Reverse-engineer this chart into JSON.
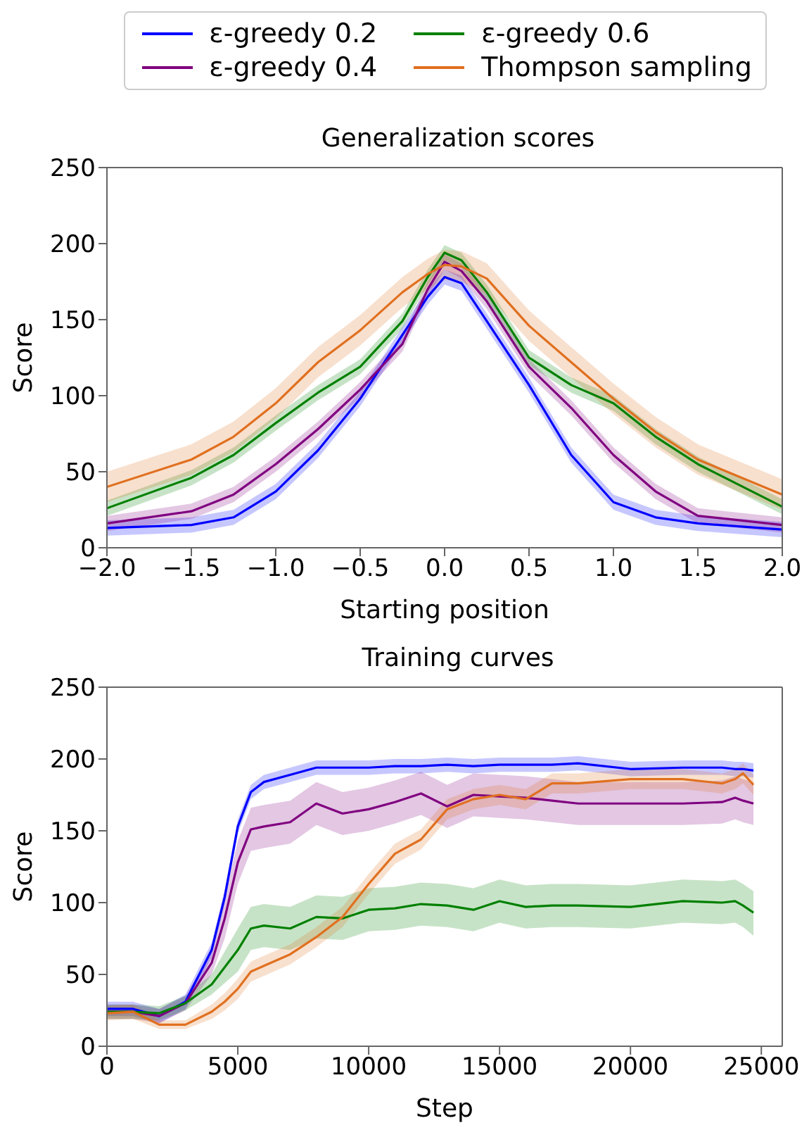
{
  "chart_data": [
    {
      "type": "line",
      "title": "Generalization scores",
      "xlabel": "Starting position",
      "ylabel": "Score",
      "legend": "top",
      "x": [
        -2,
        -1.5,
        -1.25,
        -1,
        -0.75,
        -0.5,
        -0.25,
        -0.1,
        0,
        0.1,
        0.25,
        0.5,
        0.75,
        1,
        1.25,
        1.5,
        2
      ],
      "xlim": [
        -2,
        2
      ],
      "xticks": [
        {
          "value": -2,
          "label": "−2.0"
        },
        {
          "value": -1.5,
          "label": "−1.5"
        },
        {
          "value": -1,
          "label": "−1.0"
        },
        {
          "value": -0.5,
          "label": "−0.5"
        },
        {
          "value": 0,
          "label": "0.0"
        },
        {
          "value": 0.5,
          "label": "0.5"
        },
        {
          "value": 1,
          "label": "1.0"
        },
        {
          "value": 1.5,
          "label": "1.5"
        },
        {
          "value": 2,
          "label": "2.0"
        }
      ],
      "ylim": [
        0,
        250
      ],
      "yticks": [
        0,
        50,
        100,
        150,
        200,
        250
      ],
      "series": [
        {
          "name": "ε-greedy 0.2",
          "color": "#0000ff",
          "values": [
            13,
            15,
            20,
            37,
            64,
            98,
            140,
            165,
            178,
            174,
            149,
            107,
            61,
            30,
            20,
            16,
            12
          ],
          "lower": [
            8,
            10,
            15,
            32,
            59,
            93,
            135,
            160,
            173,
            169,
            144,
            102,
            56,
            25,
            15,
            11,
            7
          ],
          "upper": [
            18,
            20,
            25,
            42,
            69,
            103,
            145,
            170,
            183,
            179,
            154,
            112,
            66,
            35,
            25,
            21,
            17
          ]
        },
        {
          "name": "ε-greedy 0.4",
          "color": "#800080",
          "values": [
            16,
            24,
            35,
            55,
            78,
            104,
            134,
            170,
            188,
            182,
            162,
            119,
            92,
            61,
            37,
            21,
            15
          ],
          "lower": [
            11,
            19,
            30,
            50,
            73,
            99,
            129,
            165,
            183,
            177,
            157,
            114,
            87,
            56,
            32,
            16,
            10
          ],
          "upper": [
            21,
            29,
            40,
            60,
            83,
            109,
            139,
            175,
            193,
            187,
            167,
            124,
            97,
            66,
            42,
            26,
            20
          ]
        },
        {
          "name": "ε-greedy 0.6",
          "color": "#008000",
          "values": [
            26,
            46,
            61,
            82,
            102,
            119,
            149,
            178,
            194,
            189,
            168,
            125,
            107,
            95,
            73,
            55,
            27
          ],
          "lower": [
            21,
            41,
            56,
            77,
            97,
            114,
            144,
            173,
            189,
            184,
            163,
            120,
            102,
            90,
            68,
            50,
            22
          ],
          "upper": [
            31,
            51,
            66,
            87,
            107,
            124,
            154,
            183,
            199,
            194,
            173,
            130,
            112,
            100,
            78,
            60,
            32
          ]
        },
        {
          "name": "Thompson sampling",
          "color": "#e07020",
          "values": [
            40,
            58,
            73,
            95,
            122,
            143,
            168,
            180,
            186,
            185,
            177,
            146,
            122,
            98,
            76,
            58,
            35
          ],
          "lower": [
            30,
            48,
            63,
            85,
            112,
            133,
            158,
            170,
            176,
            175,
            167,
            136,
            112,
            88,
            66,
            48,
            25
          ],
          "upper": [
            50,
            68,
            83,
            105,
            132,
            153,
            178,
            190,
            196,
            195,
            187,
            156,
            132,
            108,
            86,
            68,
            45
          ]
        }
      ]
    },
    {
      "type": "line",
      "title": "Training curves",
      "xlabel": "Step",
      "ylabel": "Score",
      "x": [
        0,
        1000,
        2000,
        3000,
        4000,
        4500,
        5000,
        5500,
        6000,
        7000,
        8000,
        9000,
        10000,
        11000,
        12000,
        13000,
        14000,
        15000,
        16000,
        17000,
        18000,
        20000,
        22000,
        23500,
        24000,
        24300,
        24700
      ],
      "xlim": [
        0,
        25800
      ],
      "xticks": [
        0,
        5000,
        10000,
        15000,
        20000,
        25000
      ],
      "ylim": [
        0,
        250
      ],
      "yticks": [
        0,
        50,
        100,
        150,
        200,
        250
      ],
      "series": [
        {
          "color": "#0000ff",
          "values": [
            26,
            26,
            21,
            31,
            67,
            104,
            153,
            177,
            184,
            189,
            194,
            194,
            194,
            195,
            195,
            196,
            195,
            196,
            196,
            196,
            197,
            193,
            194,
            194,
            193,
            193,
            192
          ],
          "lower": [
            21,
            21,
            16,
            26,
            62,
            99,
            148,
            172,
            179,
            184,
            189,
            189,
            189,
            190,
            190,
            191,
            190,
            191,
            191,
            191,
            192,
            188,
            189,
            189,
            188,
            188,
            187
          ],
          "upper": [
            31,
            31,
            26,
            36,
            72,
            109,
            158,
            182,
            189,
            194,
            199,
            199,
            199,
            200,
            200,
            201,
            200,
            201,
            201,
            201,
            202,
            198,
            199,
            199,
            198,
            198,
            197
          ]
        },
        {
          "color": "#800080",
          "values": [
            24,
            24,
            21,
            30,
            58,
            89,
            128,
            151,
            153,
            156,
            169,
            162,
            165,
            170,
            176,
            167,
            175,
            174,
            173,
            171,
            169,
            169,
            169,
            170,
            173,
            171,
            169
          ],
          "lower": [
            19,
            19,
            16,
            25,
            50,
            75,
            113,
            136,
            138,
            141,
            154,
            147,
            150,
            155,
            161,
            152,
            160,
            159,
            158,
            156,
            154,
            154,
            154,
            155,
            158,
            156,
            154
          ],
          "upper": [
            29,
            29,
            26,
            35,
            66,
            103,
            143,
            166,
            168,
            171,
            184,
            177,
            180,
            185,
            191,
            182,
            190,
            189,
            188,
            186,
            184,
            184,
            184,
            185,
            188,
            186,
            184
          ]
        },
        {
          "color": "#008000",
          "values": [
            24,
            24,
            23,
            30,
            43,
            55,
            67,
            82,
            84,
            82,
            90,
            89,
            95,
            96,
            99,
            98,
            95,
            101,
            97,
            98,
            98,
            97,
            101,
            100,
            101,
            98,
            93
          ],
          "lower": [
            19,
            19,
            18,
            25,
            36,
            44,
            52,
            67,
            69,
            67,
            75,
            74,
            80,
            81,
            84,
            83,
            80,
            86,
            82,
            83,
            83,
            82,
            86,
            85,
            86,
            83,
            77
          ],
          "upper": [
            29,
            29,
            28,
            35,
            50,
            66,
            82,
            97,
            99,
            97,
            105,
            104,
            110,
            111,
            114,
            113,
            110,
            116,
            112,
            113,
            113,
            112,
            116,
            115,
            116,
            113,
            108
          ]
        },
        {
          "color": "#e07020",
          "values": [
            23,
            24,
            15,
            15,
            24,
            31,
            40,
            52,
            56,
            64,
            76,
            90,
            113,
            134,
            144,
            165,
            172,
            175,
            172,
            183,
            183,
            186,
            186,
            183,
            186,
            190,
            182
          ],
          "lower": [
            18,
            19,
            12,
            12,
            19,
            25,
            33,
            45,
            49,
            57,
            69,
            83,
            106,
            127,
            137,
            158,
            165,
            168,
            165,
            176,
            176,
            179,
            179,
            176,
            179,
            183,
            175
          ],
          "upper": [
            28,
            29,
            18,
            18,
            29,
            37,
            47,
            59,
            63,
            71,
            83,
            97,
            120,
            141,
            151,
            172,
            179,
            182,
            179,
            190,
            190,
            193,
            193,
            190,
            193,
            197,
            189
          ]
        }
      ]
    }
  ]
}
